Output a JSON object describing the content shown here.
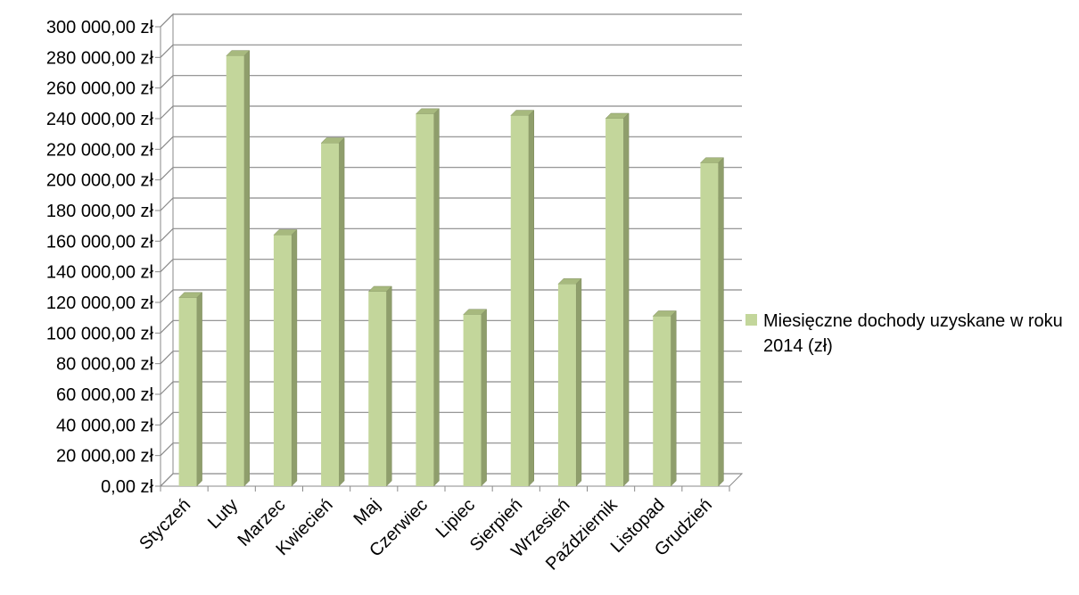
{
  "chart_data": {
    "type": "bar",
    "title": "",
    "xlabel": "",
    "ylabel": "",
    "categories": [
      "Styczeń",
      "Luty",
      "Marzec",
      "Kwiecień",
      "Maj",
      "Czerwiec",
      "Lipiec",
      "Sierpień",
      "Wrzesień",
      "Październik",
      "Listopad",
      "Grudzień"
    ],
    "series": [
      {
        "name": "Miesięczne dochody uzyskane w roku 2014 (zł)",
        "values": [
          123000,
          281000,
          164000,
          224000,
          127000,
          243000,
          112000,
          242000,
          132000,
          240000,
          111000,
          211000
        ],
        "color": "#c3d69b"
      }
    ],
    "ylim": [
      0,
      300000
    ],
    "yticks": [
      "0,00 zł",
      "20 000,00 zł",
      "40 000,00 zł",
      "60 000,00 zł",
      "80 000,00 zł",
      "100 000,00 zł",
      "120 000,00 zł",
      "140 000,00 zł",
      "160 000,00 zł",
      "180 000,00 zł",
      "200 000,00 zł",
      "220 000,00 zł",
      "240 000,00 zł",
      "260 000,00 zł",
      "280 000,00 zł",
      "300 000,00 zł"
    ],
    "grid": true,
    "legend_position": "right",
    "style": "3d-column"
  }
}
